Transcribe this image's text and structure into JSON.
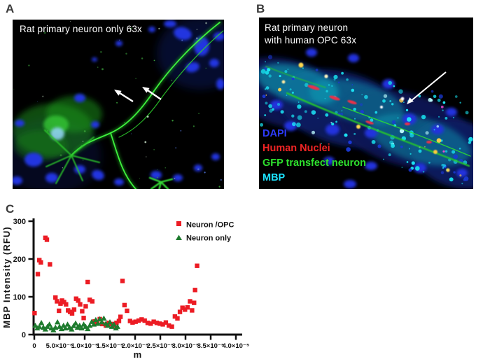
{
  "panels": {
    "a": {
      "label": "A",
      "caption": "Rat primary neuron only 63x"
    },
    "b": {
      "label": "B",
      "caption_line1": "Rat primary neuron",
      "caption_line2": "with human OPC 63x",
      "stain_legend": [
        {
          "text": "DAPI",
          "color": "#2d3bff"
        },
        {
          "text": "Human Nuclei",
          "color": "#f02424"
        },
        {
          "text": "GFP transfect neuron",
          "color": "#2ee22e"
        },
        {
          "text": "MBP",
          "color": "#1ce4ff"
        }
      ]
    },
    "c": {
      "label": "C"
    }
  },
  "chart_data": {
    "type": "scatter",
    "title": "",
    "xlabel": "m",
    "ylabel": "MBP Intensity (RFU)",
    "xlim": [
      0,
      4.2e-05
    ],
    "ylim": [
      0,
      300
    ],
    "grid": false,
    "legend_position": "top-right",
    "x_ticks": [
      0,
      5e-06,
      1e-05,
      1.5e-05,
      2e-05,
      2.5e-05,
      3e-05,
      3.5e-05,
      4e-05
    ],
    "x_tick_labels": [
      "0",
      "5.0×10⁻⁶",
      "1.0×10⁻⁵",
      "1.5×10⁻⁵",
      "2.0×10⁻⁵",
      "2.5×10⁻⁵",
      "3.0×10⁻⁵",
      "3.5×10⁻⁵",
      "4.0×10⁻⁵"
    ],
    "y_ticks": [
      0,
      100,
      200,
      300
    ],
    "series": [
      {
        "name": "Neuron /OPC",
        "marker": "square",
        "color": "#ec1c24",
        "points": [
          [
            5e-08,
            57
          ],
          [
            7e-07,
            160
          ],
          [
            1e-06,
            197
          ],
          [
            1.3e-06,
            191
          ],
          [
            2.2e-06,
            256
          ],
          [
            2.5e-06,
            251
          ],
          [
            3.1e-06,
            186
          ],
          [
            4.2e-06,
            98
          ],
          [
            4.5e-06,
            88
          ],
          [
            4.9e-06,
            63
          ],
          [
            5.2e-06,
            82
          ],
          [
            5.5e-06,
            90
          ],
          [
            5.9e-06,
            86
          ],
          [
            6.3e-06,
            80
          ],
          [
            6.7e-06,
            64
          ],
          [
            7.1e-06,
            60
          ],
          [
            7.5e-06,
            56
          ],
          [
            7.9e-06,
            66
          ],
          [
            8.3e-06,
            95
          ],
          [
            8.7e-06,
            90
          ],
          [
            9.1e-06,
            80
          ],
          [
            9.5e-06,
            62
          ],
          [
            9.8e-06,
            44
          ],
          [
            1.02e-05,
            75
          ],
          [
            1.06e-05,
            139
          ],
          [
            1.1e-05,
            92
          ],
          [
            1.15e-05,
            88
          ],
          [
            1.2e-05,
            35
          ],
          [
            1.25e-05,
            31
          ],
          [
            1.3e-05,
            41
          ],
          [
            1.35e-05,
            28
          ],
          [
            1.42e-05,
            24
          ],
          [
            1.48e-05,
            31
          ],
          [
            1.53e-05,
            28
          ],
          [
            1.58e-05,
            24
          ],
          [
            1.63e-05,
            31
          ],
          [
            1.68e-05,
            36
          ],
          [
            1.71e-05,
            47
          ],
          [
            1.75e-05,
            142
          ],
          [
            1.79e-05,
            78
          ],
          [
            1.84e-05,
            63
          ],
          [
            1.9e-05,
            36
          ],
          [
            1.95e-05,
            32
          ],
          [
            2.01e-05,
            34
          ],
          [
            2.07e-05,
            37
          ],
          [
            2.13e-05,
            40
          ],
          [
            2.19e-05,
            37
          ],
          [
            2.25e-05,
            31
          ],
          [
            2.31e-05,
            29
          ],
          [
            2.37e-05,
            34
          ],
          [
            2.43e-05,
            31
          ],
          [
            2.49e-05,
            29
          ],
          [
            2.55e-05,
            27
          ],
          [
            2.61e-05,
            32
          ],
          [
            2.67e-05,
            24
          ],
          [
            2.73e-05,
            21
          ],
          [
            2.79e-05,
            48
          ],
          [
            2.84e-05,
            43
          ],
          [
            2.89e-05,
            60
          ],
          [
            2.94e-05,
            71
          ],
          [
            2.99e-05,
            66
          ],
          [
            3.04e-05,
            72
          ],
          [
            3.09e-05,
            88
          ],
          [
            3.13e-05,
            64
          ],
          [
            3.17e-05,
            84
          ],
          [
            3.19e-05,
            118
          ],
          [
            3.23e-05,
            182
          ]
        ]
      },
      {
        "name": "Neuron only",
        "marker": "triangle",
        "color": "#1e7b2e",
        "points": [
          [
            2e-07,
            24
          ],
          [
            6e-07,
            17
          ],
          [
            1e-06,
            21
          ],
          [
            1.4e-06,
            31
          ],
          [
            1.8e-06,
            19
          ],
          [
            2.2e-06,
            14
          ],
          [
            2.6e-06,
            21
          ],
          [
            3e-06,
            27
          ],
          [
            3.4e-06,
            17
          ],
          [
            3.8e-06,
            12
          ],
          [
            4.2e-06,
            19
          ],
          [
            4.6e-06,
            33
          ],
          [
            5e-06,
            21
          ],
          [
            5.4e-06,
            15
          ],
          [
            5.8e-06,
            24
          ],
          [
            6.2e-06,
            17
          ],
          [
            6.6e-06,
            27
          ],
          [
            7e-06,
            19
          ],
          [
            7.4e-06,
            14
          ],
          [
            7.8e-06,
            23
          ],
          [
            8.2e-06,
            30
          ],
          [
            8.6e-06,
            19
          ],
          [
            9e-06,
            24
          ],
          [
            9.4e-06,
            17
          ],
          [
            9.8e-06,
            27
          ],
          [
            1.02e-05,
            21
          ],
          [
            1.06e-05,
            15
          ],
          [
            1.1e-05,
            24
          ],
          [
            1.14e-05,
            34
          ],
          [
            1.18e-05,
            27
          ],
          [
            1.22e-05,
            39
          ],
          [
            1.26e-05,
            29
          ],
          [
            1.3e-05,
            41
          ],
          [
            1.34e-05,
            33
          ],
          [
            1.38e-05,
            43
          ],
          [
            1.42e-05,
            29
          ],
          [
            1.46e-05,
            24
          ],
          [
            1.5e-05,
            33
          ],
          [
            1.54e-05,
            21
          ],
          [
            1.58e-05,
            27
          ],
          [
            1.62e-05,
            17
          ],
          [
            1.65e-05,
            21
          ]
        ]
      }
    ]
  }
}
